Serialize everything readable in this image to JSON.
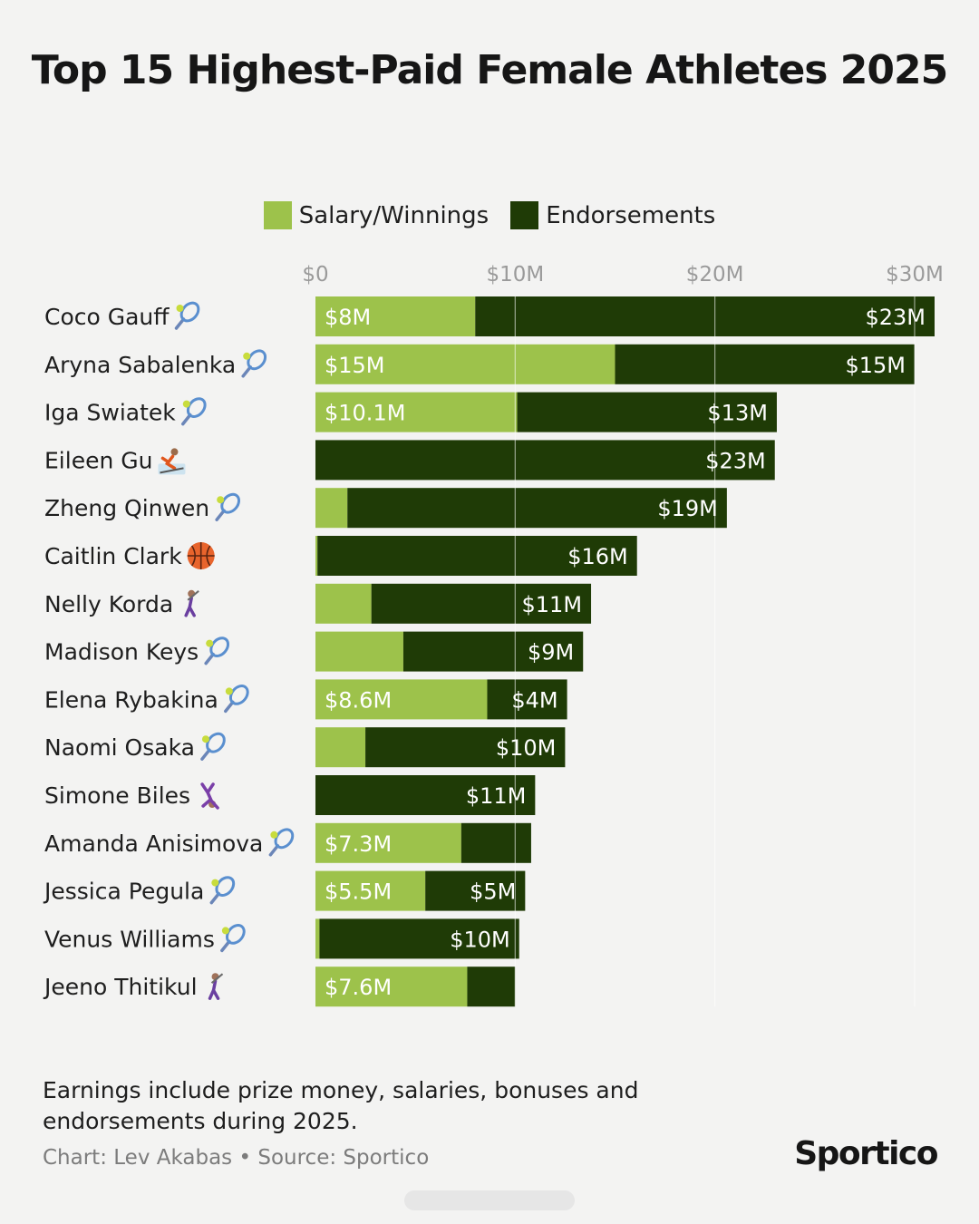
{
  "chart_data": {
    "type": "bar",
    "orientation": "horizontal",
    "stacked": true,
    "title": "Top 15 Highest-Paid Female Athletes 2025",
    "xlim": [
      0,
      31
    ],
    "xticks": [
      0,
      10,
      20,
      30
    ],
    "xtick_labels": [
      "$0",
      "$10M",
      "$20M",
      "$30M"
    ],
    "legend_position": "top",
    "colors": {
      "Salary/Winnings": "#9dc24b",
      "Endorsements": "#1f3b06"
    },
    "categories": [
      "Coco Gauff",
      "Aryna Sabalenka",
      "Iga Swiatek",
      "Eileen Gu",
      "Zheng Qinwen",
      "Caitlin Clark",
      "Nelly Korda",
      "Madison Keys",
      "Elena Rybakina",
      "Naomi Osaka",
      "Simone Biles",
      "Amanda Anisimova",
      "Jessica Pegula",
      "Venus Williams",
      "Jeeno Thitikul"
    ],
    "sport_icons": [
      "tennis-icon",
      "tennis-icon",
      "tennis-icon",
      "skier-icon",
      "tennis-icon",
      "basketball-icon",
      "golfer-icon",
      "tennis-icon",
      "tennis-icon",
      "tennis-icon",
      "gymnast-icon",
      "tennis-icon",
      "tennis-icon",
      "tennis-icon",
      "golfer-icon"
    ],
    "series": [
      {
        "name": "Salary/Winnings",
        "values": [
          8,
          15,
          10.1,
          0,
          1.6,
          0.1,
          2.8,
          4.4,
          8.6,
          2.5,
          0,
          7.3,
          5.5,
          0.2,
          7.6
        ],
        "labels": [
          "$8M",
          "$15M",
          "$10.1M",
          "",
          "",
          "",
          "",
          "",
          "$8.6M",
          "",
          "",
          "$7.3M",
          "$5.5M",
          "",
          "$7.6M"
        ]
      },
      {
        "name": "Endorsements",
        "values": [
          23,
          15,
          13,
          23,
          19,
          16,
          11,
          9,
          4,
          10,
          11,
          3.5,
          5,
          10,
          2.4
        ],
        "labels": [
          "$23M",
          "$15M",
          "$13M",
          "$23M",
          "$19M",
          "$16M",
          "$11M",
          "$9M",
          "$4M",
          "$10M",
          "$11M",
          "",
          "$5M",
          "$10M",
          ""
        ]
      }
    ]
  },
  "footer": {
    "note": "Earnings include prize money, salaries, bonuses and endorsements during 2025.",
    "credit": "Chart: Lev Akabas • Source: Sportico",
    "logo": "Sportico"
  }
}
